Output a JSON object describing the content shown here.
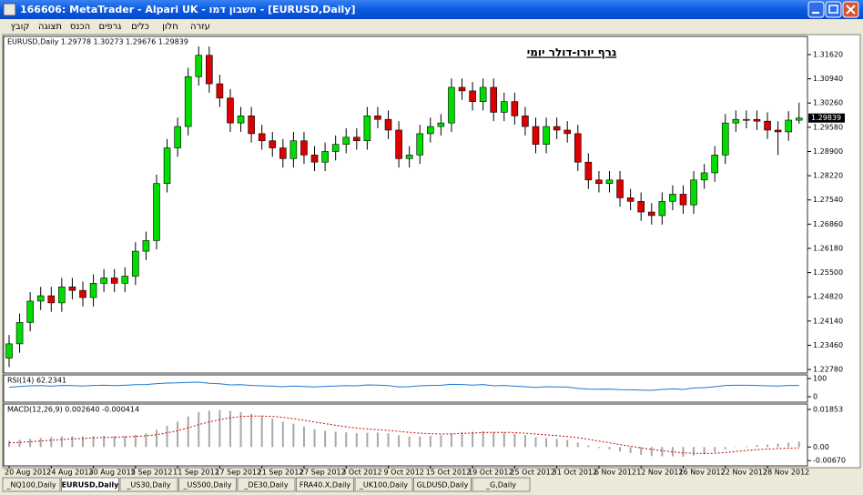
{
  "window": {
    "title": "166606: MetaTrader - Alpari UK - חשבון דמו - [EURUSD,Daily]",
    "menu": [
      "קובץ",
      "תצוגה",
      "הכנס",
      "גרפים",
      "כלים",
      "חלון",
      "עזרה"
    ]
  },
  "chart_data": [
    {
      "type": "candlestick",
      "title": "EURUSD,Daily  1.29778 1.30273 1.29676 1.29839",
      "annotation": "גרף יורו-דולר יומי",
      "categories": [
        "20 Aug 2012",
        null,
        null,
        null,
        "24 Aug 2012",
        null,
        null,
        null,
        "30 Aug 2012",
        null,
        null,
        null,
        "5 Sep 2012",
        null,
        null,
        null,
        "11 Sep 2012",
        null,
        null,
        null,
        "17 Sep 2012",
        null,
        null,
        null,
        "21 Sep 2012",
        null,
        null,
        null,
        "27 Sep 2012",
        null,
        null,
        null,
        "3 Oct 2012",
        null,
        null,
        null,
        "9 Oct 2012",
        null,
        null,
        null,
        "15 Oct 2012",
        null,
        null,
        null,
        "19 Oct 2012",
        null,
        null,
        null,
        "25 Oct 2012",
        null,
        null,
        null,
        "31 Oct 2012",
        null,
        null,
        null,
        "6 Nov 2012",
        null,
        null,
        null,
        "12 Nov 2012",
        null,
        null,
        null,
        "16 Nov 2012",
        null,
        null,
        null,
        "22 Nov 2012",
        null,
        null,
        null,
        "28 Nov 2012",
        null,
        null,
        null
      ],
      "open": [
        1.231,
        1.235,
        1.241,
        1.247,
        1.2485,
        1.2465,
        1.251,
        1.25,
        1.248,
        1.252,
        1.2535,
        1.252,
        1.254,
        1.261,
        1.264,
        1.28,
        1.29,
        1.296,
        1.31,
        1.316,
        1.308,
        1.304,
        1.297,
        1.299,
        1.294,
        1.292,
        1.29,
        1.287,
        1.292,
        1.288,
        1.286,
        1.289,
        1.291,
        1.293,
        1.292,
        1.299,
        1.298,
        1.295,
        1.287,
        1.288,
        1.294,
        1.296,
        1.297,
        1.307,
        1.306,
        1.303,
        1.307,
        1.3,
        1.303,
        1.299,
        1.296,
        1.291,
        1.296,
        1.295,
        1.294,
        1.286,
        1.281,
        1.28,
        1.281,
        1.276,
        1.275,
        1.272,
        1.271,
        1.275,
        1.277,
        1.274,
        1.281,
        1.283,
        1.288,
        1.297,
        1.298,
        1.298,
        1.2975,
        1.295,
        1.2945,
        1.29778
      ],
      "high": [
        1.2375,
        1.2435,
        1.2495,
        1.251,
        1.251,
        1.2535,
        1.2535,
        1.2525,
        1.2545,
        1.256,
        1.256,
        1.2565,
        1.2635,
        1.2665,
        1.2825,
        1.2925,
        1.2985,
        1.3125,
        1.3185,
        1.3185,
        1.3105,
        1.3065,
        1.3015,
        1.3015,
        1.2965,
        1.2945,
        1.2925,
        1.2945,
        1.2945,
        1.2905,
        1.2915,
        1.2935,
        1.2955,
        1.2955,
        1.3015,
        1.3015,
        1.3005,
        1.2975,
        1.2905,
        1.2965,
        1.2985,
        1.2995,
        1.3095,
        1.3095,
        1.3085,
        1.3095,
        1.3095,
        1.3055,
        1.3055,
        1.3015,
        1.2985,
        1.2985,
        1.2985,
        1.2975,
        1.2965,
        1.2885,
        1.2835,
        1.2835,
        1.2835,
        1.2785,
        1.2775,
        1.2745,
        1.2775,
        1.2795,
        1.2795,
        1.2835,
        1.2855,
        1.2905,
        1.2995,
        1.3005,
        1.3005,
        1.3005,
        1.3,
        1.2975,
        1.3003,
        1.30273
      ],
      "low": [
        1.2285,
        1.2325,
        1.2385,
        1.2445,
        1.244,
        1.244,
        1.2475,
        1.2455,
        1.2455,
        1.2495,
        1.2495,
        1.2495,
        1.2515,
        1.2585,
        1.2615,
        1.2775,
        1.2875,
        1.2935,
        1.3075,
        1.3055,
        1.3015,
        1.2945,
        1.2945,
        1.2915,
        1.2895,
        1.2875,
        1.2845,
        1.2845,
        1.2855,
        1.2835,
        1.2835,
        1.2865,
        1.2885,
        1.2895,
        1.2895,
        1.2955,
        1.2925,
        1.2845,
        1.2845,
        1.2855,
        1.2915,
        1.2935,
        1.2945,
        1.3035,
        1.3005,
        1.3005,
        1.2975,
        1.2975,
        1.2965,
        1.2935,
        1.2885,
        1.2885,
        1.2925,
        1.2915,
        1.2835,
        1.2785,
        1.2775,
        1.2775,
        1.2735,
        1.2725,
        1.2695,
        1.2685,
        1.2685,
        1.2725,
        1.2715,
        1.2715,
        1.2785,
        1.2805,
        1.2855,
        1.2945,
        1.2955,
        1.295,
        1.2925,
        1.288,
        1.292,
        1.29676
      ],
      "close": [
        1.235,
        1.241,
        1.247,
        1.2485,
        1.2465,
        1.251,
        1.25,
        1.248,
        1.252,
        1.2535,
        1.252,
        1.254,
        1.261,
        1.264,
        1.28,
        1.29,
        1.296,
        1.31,
        1.316,
        1.308,
        1.304,
        1.297,
        1.299,
        1.294,
        1.292,
        1.29,
        1.287,
        1.292,
        1.288,
        1.286,
        1.289,
        1.291,
        1.293,
        1.292,
        1.299,
        1.298,
        1.295,
        1.287,
        1.288,
        1.294,
        1.296,
        1.297,
        1.307,
        1.306,
        1.303,
        1.307,
        1.3,
        1.303,
        1.299,
        1.296,
        1.291,
        1.296,
        1.295,
        1.294,
        1.286,
        1.281,
        1.28,
        1.281,
        1.276,
        1.275,
        1.272,
        1.271,
        1.275,
        1.277,
        1.274,
        1.281,
        1.283,
        1.288,
        1.297,
        1.298,
        1.298,
        1.2975,
        1.295,
        1.2945,
        1.2978,
        1.29839
      ],
      "up_color": "#00dd00",
      "down_color": "#dd0000",
      "last_price": 1.29839,
      "ylim": [
        1.2268,
        1.3213
      ],
      "yticks": [
        {
          "value": 1.3162,
          "label": "1.31620"
        },
        {
          "value": 1.3094,
          "label": "1.30940"
        },
        {
          "value": 1.3026,
          "label": "1.30260"
        },
        {
          "value": 1.2958,
          "label": "1.29580"
        },
        {
          "value": 1.289,
          "label": "1.28900"
        },
        {
          "value": 1.2822,
          "label": "1.28220"
        },
        {
          "value": 1.2754,
          "label": "1.27540"
        },
        {
          "value": 1.2686,
          "label": "1.26860"
        },
        {
          "value": 1.2618,
          "label": "1.26180"
        },
        {
          "value": 1.255,
          "label": "1.25500"
        },
        {
          "value": 1.2482,
          "label": "1.24820"
        },
        {
          "value": 1.2414,
          "label": "1.24140"
        },
        {
          "value": 1.2346,
          "label": "1.23460"
        },
        {
          "value": 1.2278,
          "label": "1.22780"
        }
      ]
    },
    {
      "type": "line",
      "title": "RSI(14) 62.2341",
      "values": [
        52,
        56,
        60,
        61,
        58,
        62,
        61,
        59,
        62,
        63,
        61,
        63,
        66,
        67,
        72,
        75,
        76,
        79,
        80,
        74,
        71,
        65,
        66,
        62,
        60,
        58,
        55,
        59,
        56,
        54,
        57,
        59,
        61,
        60,
        65,
        64,
        61,
        54,
        55,
        60,
        62,
        63,
        68,
        67,
        64,
        67,
        60,
        62,
        58,
        55,
        51,
        55,
        54,
        53,
        46,
        42,
        41,
        42,
        39,
        38,
        36,
        35,
        40,
        43,
        40,
        48,
        50,
        55,
        62,
        63,
        63,
        62,
        60,
        59,
        62,
        62.2341
      ],
      "color": "#1e78d2",
      "ylim": [
        -30,
        120
      ],
      "yticks": [
        0,
        100
      ]
    },
    {
      "type": "bar",
      "title": "MACD(12,26,9) 0.002640 -0.000414",
      "values": [
        0.003,
        0.0035,
        0.004,
        0.0045,
        0.0048,
        0.0052,
        0.0053,
        0.0052,
        0.0054,
        0.0055,
        0.0054,
        0.0055,
        0.006,
        0.0068,
        0.0085,
        0.0105,
        0.0125,
        0.015,
        0.0172,
        0.018,
        0.0182,
        0.0178,
        0.0172,
        0.0163,
        0.0152,
        0.014,
        0.0125,
        0.0115,
        0.01,
        0.0088,
        0.008,
        0.0075,
        0.0072,
        0.0068,
        0.007,
        0.0071,
        0.0068,
        0.0058,
        0.0052,
        0.0052,
        0.0055,
        0.0058,
        0.0068,
        0.0074,
        0.0075,
        0.0078,
        0.0074,
        0.0072,
        0.0066,
        0.0058,
        0.0048,
        0.0044,
        0.004,
        0.0035,
        0.0022,
        0.0008,
        -0.0005,
        -0.0012,
        -0.0022,
        -0.003,
        -0.0038,
        -0.0045,
        -0.0046,
        -0.0046,
        -0.0048,
        -0.0042,
        -0.0036,
        -0.0025,
        -0.0012,
        -0.0002,
        0.0004,
        0.0009,
        0.0012,
        0.0016,
        0.0021,
        0.00264
      ],
      "signal": [
        0.002,
        0.0023,
        0.0026,
        0.003,
        0.0033,
        0.0037,
        0.004,
        0.0042,
        0.0045,
        0.0047,
        0.0048,
        0.005,
        0.0052,
        0.0055,
        0.0061,
        0.007,
        0.0081,
        0.0095,
        0.011,
        0.0124,
        0.0135,
        0.0144,
        0.015,
        0.0153,
        0.0153,
        0.0151,
        0.0146,
        0.014,
        0.0132,
        0.0123,
        0.0115,
        0.0107,
        0.01,
        0.0093,
        0.0089,
        0.0085,
        0.0082,
        0.0077,
        0.0072,
        0.0068,
        0.0066,
        0.0064,
        0.0065,
        0.0067,
        0.0069,
        0.0071,
        0.0072,
        0.0072,
        0.0071,
        0.0068,
        0.0064,
        0.006,
        0.0056,
        0.0052,
        0.0046,
        0.0038,
        0.0029,
        0.0021,
        0.0012,
        0.0004,
        -0.0004,
        -0.0012,
        -0.0018,
        -0.0024,
        -0.0029,
        -0.0031,
        -0.0032,
        -0.0031,
        -0.0027,
        -0.0022,
        -0.0017,
        -0.0013,
        -0.001,
        -0.0008,
        -0.0006,
        -0.000414
      ],
      "color": "#a8a8a8",
      "signal_color": "#cc0000",
      "ylim": [
        -0.0093,
        0.0212
      ],
      "yticks": [
        0.01853,
        {
          "value": 0,
          "label": "0.00"
        },
        {
          "value": -0.0067,
          "label": "-0.00670"
        }
      ]
    }
  ],
  "tabs": [
    "_NQ100,Daily",
    "EURUSD,Daily",
    "_US30,Daily",
    "_US500,Daily",
    "_DE30,Daily",
    "FRA40.X,Daily",
    "_UK100,Daily",
    "GLDUSD,Daily",
    "_G,Daily"
  ]
}
